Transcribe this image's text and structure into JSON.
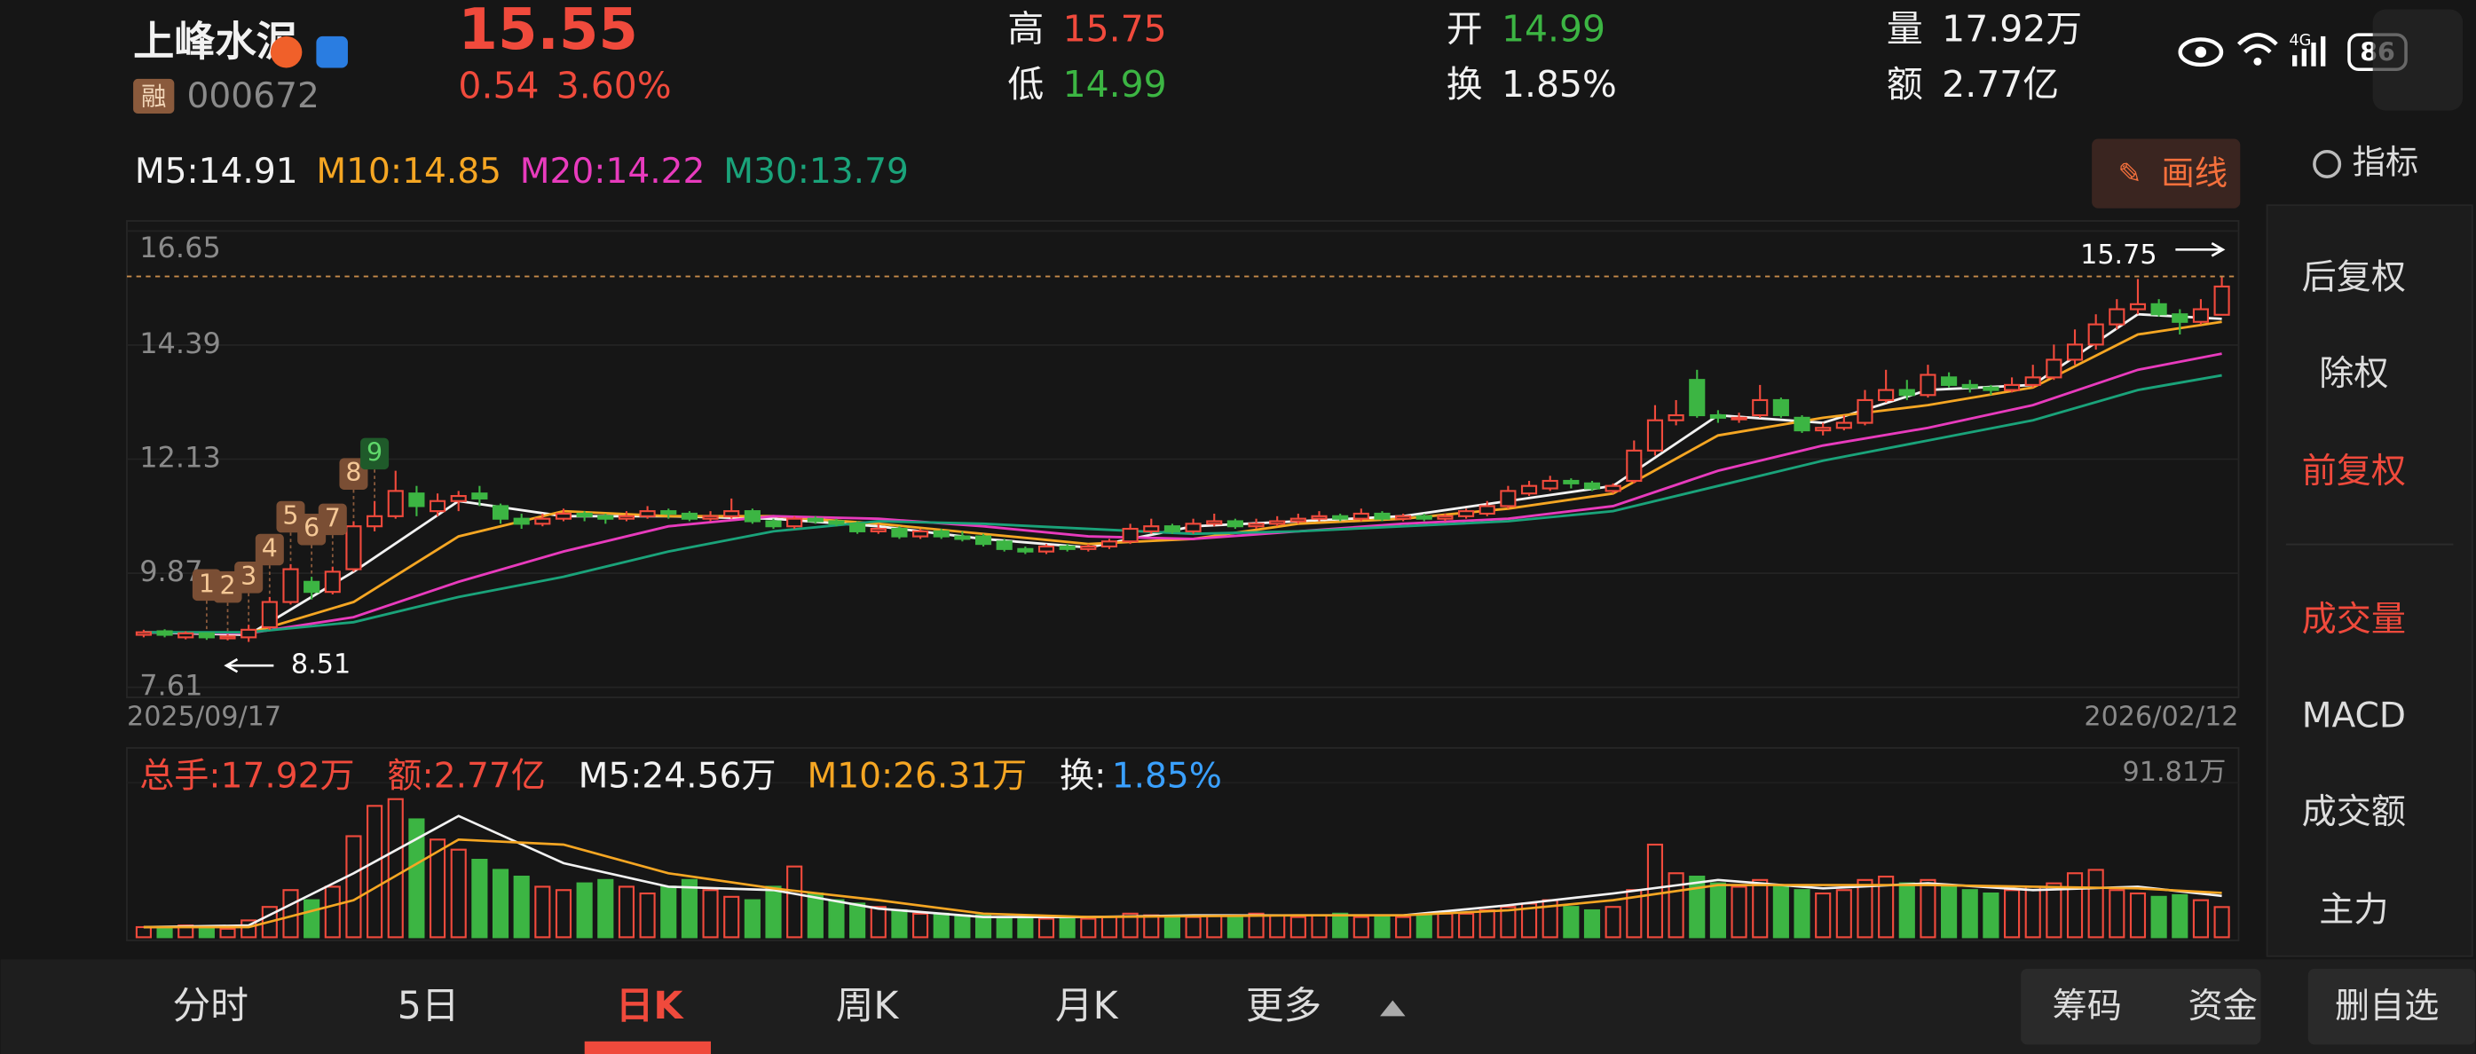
{
  "header": {
    "name": "上峰水泥",
    "margin_badge": "融",
    "code": "000672",
    "price": "15.55",
    "change": "0.54",
    "change_pct": "3.60%",
    "stats": [
      {
        "label": "高",
        "value": "15.75"
      },
      {
        "label": "低",
        "value": "14.99"
      },
      {
        "label": "开",
        "value": "14.99"
      },
      {
        "label": "换",
        "value": "1.85%"
      },
      {
        "label": "量",
        "value": "17.92万"
      },
      {
        "label": "额",
        "value": "2.77亿"
      }
    ]
  },
  "status": {
    "network": "4G",
    "battery": "86"
  },
  "draw_button": "画线",
  "sidebar": {
    "title": "指标",
    "items": [
      "后复权",
      "除权",
      "前复权",
      "成交量",
      "MACD",
      "成交额",
      "主力"
    ]
  },
  "tabs": [
    "分时",
    "5日",
    "日K",
    "周K",
    "月K",
    "更多"
  ],
  "buttons": [
    "筹码",
    "资金",
    "删自选"
  ],
  "chart_data": [
    {
      "type": "candlestick",
      "ylim": [
        7.41,
        16.85
      ],
      "yticks": [
        16.65,
        14.39,
        12.13,
        9.87,
        7.61
      ],
      "grid": true,
      "x_labels": [
        "2025/09/17",
        "2026/02/12"
      ],
      "up_color": "#f04a3c",
      "down_color": "#3cb543",
      "high_marker": 15.75,
      "low_marker": 8.51,
      "signals": [
        "1",
        "2",
        "3",
        "4",
        "5",
        "6",
        "7",
        "8",
        "9"
      ],
      "candles": [
        [
          8.65,
          8.75,
          8.6,
          8.7
        ],
        [
          8.72,
          8.76,
          8.6,
          8.65
        ],
        [
          8.6,
          8.72,
          8.56,
          8.68
        ],
        [
          8.68,
          8.7,
          8.55,
          8.6
        ],
        [
          8.58,
          8.66,
          8.54,
          8.62
        ],
        [
          8.6,
          8.85,
          8.51,
          8.75
        ],
        [
          8.8,
          9.4,
          8.75,
          9.3
        ],
        [
          9.3,
          10.05,
          9.25,
          9.95
        ],
        [
          9.7,
          9.8,
          9.35,
          9.5
        ],
        [
          9.5,
          10.0,
          9.45,
          9.9
        ],
        [
          9.95,
          10.9,
          9.9,
          10.8
        ],
        [
          10.8,
          11.3,
          10.7,
          11.0
        ],
        [
          11.0,
          11.9,
          10.95,
          11.5
        ],
        [
          11.45,
          11.6,
          11.0,
          11.2
        ],
        [
          11.1,
          11.45,
          11.0,
          11.3
        ],
        [
          11.3,
          11.5,
          11.1,
          11.4
        ],
        [
          11.45,
          11.6,
          11.2,
          11.35
        ],
        [
          11.2,
          11.25,
          10.85,
          10.95
        ],
        [
          10.95,
          11.05,
          10.75,
          10.85
        ],
        [
          10.85,
          11.05,
          10.8,
          10.95
        ],
        [
          10.95,
          11.15,
          10.9,
          11.05
        ],
        [
          11.05,
          11.1,
          10.9,
          11.0
        ],
        [
          11.0,
          11.05,
          10.85,
          10.95
        ],
        [
          10.95,
          11.1,
          10.9,
          11.0
        ],
        [
          11.0,
          11.2,
          10.95,
          11.1
        ],
        [
          11.1,
          11.15,
          10.95,
          11.05
        ],
        [
          11.05,
          11.1,
          10.9,
          10.95
        ],
        [
          10.95,
          11.1,
          10.9,
          11.0
        ],
        [
          11.0,
          11.35,
          10.95,
          11.1
        ],
        [
          11.1,
          11.15,
          10.85,
          10.9
        ],
        [
          10.9,
          10.95,
          10.75,
          10.8
        ],
        [
          10.8,
          11.0,
          10.75,
          10.95
        ],
        [
          10.95,
          11.0,
          10.85,
          10.9
        ],
        [
          10.9,
          10.95,
          10.8,
          10.85
        ],
        [
          10.85,
          10.9,
          10.65,
          10.7
        ],
        [
          10.7,
          10.85,
          10.65,
          10.75
        ],
        [
          10.75,
          10.8,
          10.55,
          10.6
        ],
        [
          10.6,
          10.75,
          10.55,
          10.7
        ],
        [
          10.7,
          10.75,
          10.55,
          10.6
        ],
        [
          10.6,
          10.7,
          10.5,
          10.55
        ],
        [
          10.6,
          10.65,
          10.4,
          10.45
        ],
        [
          10.5,
          10.55,
          10.3,
          10.35
        ],
        [
          10.35,
          10.4,
          10.25,
          10.3
        ],
        [
          10.3,
          10.45,
          10.25,
          10.4
        ],
        [
          10.4,
          10.45,
          10.3,
          10.35
        ],
        [
          10.35,
          10.45,
          10.3,
          10.4
        ],
        [
          10.4,
          10.55,
          10.35,
          10.5
        ],
        [
          10.5,
          10.85,
          10.45,
          10.75
        ],
        [
          10.7,
          10.95,
          10.65,
          10.8
        ],
        [
          10.8,
          10.85,
          10.65,
          10.7
        ],
        [
          10.7,
          10.95,
          10.65,
          10.85
        ],
        [
          10.85,
          11.05,
          10.8,
          10.9
        ],
        [
          10.9,
          10.95,
          10.75,
          10.8
        ],
        [
          10.8,
          10.95,
          10.75,
          10.85
        ],
        [
          10.85,
          11.0,
          10.8,
          10.9
        ],
        [
          10.9,
          11.05,
          10.85,
          10.95
        ],
        [
          10.95,
          11.1,
          10.9,
          11.0
        ],
        [
          11.0,
          11.05,
          10.9,
          10.95
        ],
        [
          10.95,
          11.15,
          10.9,
          11.05
        ],
        [
          11.05,
          11.1,
          10.9,
          10.95
        ],
        [
          10.95,
          11.05,
          10.9,
          11.0
        ],
        [
          11.0,
          11.05,
          10.9,
          10.95
        ],
        [
          10.95,
          11.05,
          10.9,
          11.0
        ],
        [
          11.0,
          11.15,
          10.95,
          11.1
        ],
        [
          11.05,
          11.3,
          11.0,
          11.2
        ],
        [
          11.2,
          11.6,
          11.15,
          11.5
        ],
        [
          11.45,
          11.7,
          11.4,
          11.6
        ],
        [
          11.55,
          11.8,
          11.5,
          11.7
        ],
        [
          11.7,
          11.75,
          11.55,
          11.65
        ],
        [
          11.65,
          11.7,
          11.5,
          11.55
        ],
        [
          11.5,
          11.65,
          11.45,
          11.6
        ],
        [
          11.7,
          12.5,
          11.65,
          12.3
        ],
        [
          12.3,
          13.2,
          12.2,
          12.9
        ],
        [
          12.9,
          13.3,
          12.8,
          13.0
        ],
        [
          13.7,
          13.9,
          12.95,
          13.0
        ],
        [
          13.0,
          13.1,
          12.85,
          12.95
        ],
        [
          12.95,
          13.05,
          12.85,
          12.95
        ],
        [
          13.0,
          13.6,
          12.95,
          13.3
        ],
        [
          13.3,
          13.35,
          12.95,
          13.0
        ],
        [
          12.95,
          13.0,
          12.65,
          12.7
        ],
        [
          12.7,
          12.85,
          12.6,
          12.75
        ],
        [
          12.75,
          13.0,
          12.7,
          12.85
        ],
        [
          12.85,
          13.5,
          12.8,
          13.3
        ],
        [
          13.3,
          13.9,
          13.25,
          13.5
        ],
        [
          13.5,
          13.7,
          13.3,
          13.4
        ],
        [
          13.4,
          14.0,
          13.35,
          13.8
        ],
        [
          13.75,
          13.85,
          13.55,
          13.6
        ],
        [
          13.6,
          13.7,
          13.45,
          13.55
        ],
        [
          13.55,
          13.6,
          13.4,
          13.5
        ],
        [
          13.5,
          13.75,
          13.45,
          13.6
        ],
        [
          13.6,
          14.0,
          13.55,
          13.75
        ],
        [
          13.75,
          14.4,
          13.7,
          14.1
        ],
        [
          14.1,
          14.7,
          14.0,
          14.4
        ],
        [
          14.4,
          15.0,
          14.3,
          14.8
        ],
        [
          14.8,
          15.3,
          14.7,
          15.1
        ],
        [
          15.1,
          15.7,
          15.0,
          15.2
        ],
        [
          15.2,
          15.3,
          14.95,
          15.0
        ],
        [
          15.0,
          15.1,
          14.6,
          14.85
        ],
        [
          14.85,
          15.3,
          14.8,
          15.1
        ],
        [
          14.99,
          15.75,
          14.99,
          15.55
        ]
      ],
      "ma_x": [
        0,
        5,
        10,
        15,
        20,
        25,
        30,
        35,
        40,
        45,
        50,
        55,
        60,
        65,
        70,
        75,
        80,
        85,
        90,
        95,
        99
      ],
      "ma": [
        {
          "name": "M5:14.91",
          "color": "#f2f2f2",
          "values": [
            8.7,
            8.65,
            9.9,
            11.3,
            11.0,
            11.0,
            10.95,
            10.8,
            10.55,
            10.38,
            10.8,
            10.9,
            11.0,
            11.3,
            11.6,
            13.0,
            12.85,
            13.5,
            13.6,
            15.0,
            14.91
          ]
        },
        {
          "name": "M10:14.85",
          "color": "#f5a623",
          "values": [
            8.7,
            8.68,
            9.3,
            10.6,
            11.1,
            11.0,
            11.0,
            10.85,
            10.65,
            10.45,
            10.55,
            10.85,
            10.95,
            11.15,
            11.45,
            12.6,
            12.95,
            13.2,
            13.55,
            14.6,
            14.85
          ]
        },
        {
          "name": "M20:14.22",
          "color": "#e83bbd",
          "values": [
            8.7,
            8.68,
            9.0,
            9.7,
            10.3,
            10.8,
            11.0,
            10.95,
            10.8,
            10.6,
            10.55,
            10.7,
            10.85,
            10.95,
            11.2,
            11.9,
            12.4,
            12.75,
            13.2,
            13.9,
            14.22
          ]
        },
        {
          "name": "M30:13.79",
          "color": "#1aa37a",
          "values": [
            8.7,
            8.7,
            8.9,
            9.4,
            9.8,
            10.3,
            10.7,
            10.9,
            10.85,
            10.75,
            10.65,
            10.7,
            10.8,
            10.9,
            11.1,
            11.6,
            12.1,
            12.5,
            12.9,
            13.5,
            13.79
          ]
        }
      ]
    },
    {
      "type": "bar",
      "ylim": [
        0,
        91.81
      ],
      "yticks": [
        {
          "value": 91.81,
          "label": "91.81万"
        }
      ],
      "legend": [
        {
          "text": "总手:17.92万",
          "color": "#f04a3c"
        },
        {
          "text": "额:2.77亿",
          "color": "#f04a3c"
        }
      ],
      "turnover": {
        "label": "换:",
        "value": "1.85%",
        "color": "#3aa0ff"
      },
      "values": [
        6,
        5,
        7,
        6,
        5,
        10,
        18,
        28,
        22,
        30,
        60,
        78,
        82,
        70,
        58,
        52,
        46,
        40,
        36,
        30,
        28,
        32,
        34,
        30,
        26,
        30,
        34,
        28,
        24,
        22,
        30,
        42,
        26,
        22,
        20,
        18,
        16,
        14,
        14,
        13,
        13,
        12,
        12,
        11,
        12,
        11,
        12,
        14,
        13,
        12,
        12,
        13,
        12,
        14,
        13,
        12,
        13,
        14,
        12,
        13,
        12,
        13,
        14,
        14,
        16,
        18,
        20,
        22,
        18,
        16,
        18,
        28,
        55,
        38,
        36,
        32,
        30,
        34,
        30,
        28,
        26,
        28,
        34,
        36,
        32,
        34,
        30,
        28,
        26,
        28,
        30,
        32,
        38,
        40,
        28,
        26,
        24,
        25,
        22,
        17.92
      ],
      "ma_x": [
        0,
        5,
        10,
        15,
        20,
        25,
        30,
        35,
        40,
        45,
        50,
        55,
        60,
        65,
        70,
        75,
        80,
        85,
        90,
        95,
        99
      ],
      "series": [
        {
          "name": "M5:24.56万",
          "color": "#f2f2f2",
          "values": [
            6,
            7,
            38,
            72,
            44,
            30,
            28,
            17,
            12,
            12,
            13,
            13,
            13,
            19,
            26,
            34,
            29,
            32,
            28,
            30,
            24.56
          ]
        },
        {
          "name": "M10:26.31万",
          "color": "#f5a623",
          "values": [
            6,
            6,
            22,
            58,
            55,
            38,
            29,
            22,
            14,
            12,
            12.5,
            13,
            13,
            16,
            22,
            31,
            31,
            31,
            30,
            29,
            26.31
          ]
        }
      ]
    }
  ]
}
